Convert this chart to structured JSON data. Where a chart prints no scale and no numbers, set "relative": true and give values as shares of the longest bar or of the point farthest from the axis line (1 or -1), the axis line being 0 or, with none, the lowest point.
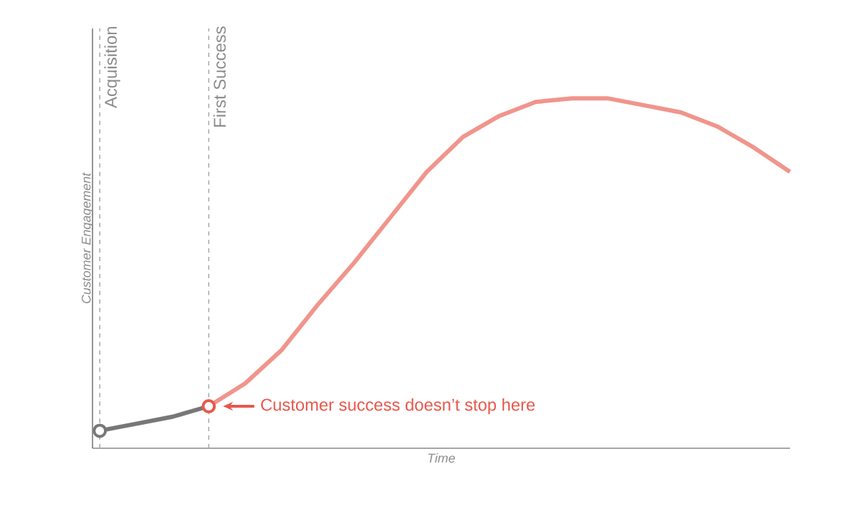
{
  "chart_data": {
    "type": "line",
    "relative": true,
    "xlabel": "Time",
    "ylabel": "Customer Engagement",
    "tick_labels": false,
    "categories": [
      null,
      null,
      null,
      null,
      null,
      null,
      null,
      null,
      null,
      null,
      null,
      null,
      null,
      null,
      null,
      null,
      null,
      null,
      null,
      null
    ],
    "series": [
      {
        "color": "#777777",
        "values": [
          0.05,
          0.07,
          0.09,
          0.12,
          null,
          null,
          null,
          null,
          null,
          null,
          null,
          null,
          null,
          null,
          null,
          null,
          null,
          null,
          null,
          null
        ]
      },
      {
        "color": "#f0958c",
        "values": [
          null,
          null,
          null,
          0.12,
          0.185,
          0.28,
          0.41,
          0.53,
          0.66,
          0.79,
          0.89,
          0.95,
          0.99,
          1,
          1,
          0.98,
          0.96,
          0.92,
          0.86,
          0.79
        ]
      }
    ],
    "annotations": [
      "Acquisition",
      "First Success",
      "Customer success doesn’t stop here"
    ]
  }
}
